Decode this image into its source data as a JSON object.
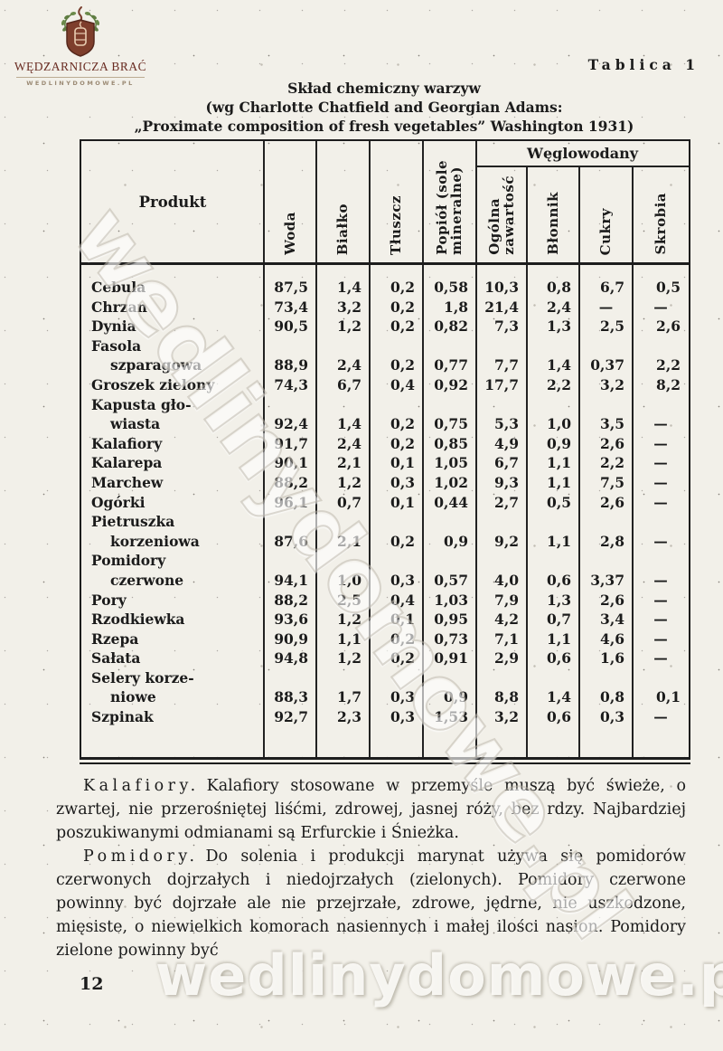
{
  "page": {
    "tablica_label": "Tablica 1",
    "page_number": "12"
  },
  "logo": {
    "title": "WĘDZARNICZA BRAĆ",
    "url": "WEDLINYDOMOWE.PL"
  },
  "title": {
    "line1": "Skład chemiczny warzyw",
    "line2": "(wg Charlotte Chatfield and Georgian Adams:",
    "line3": "„Proximate composition of fresh vegetables” Washington 1931)"
  },
  "table": {
    "product_header": "Produkt",
    "col_headers": [
      "Woda",
      "Białko",
      "Tłuszcz",
      "Popiół (sole\nmineralne)"
    ],
    "group_header": "Węglowodany",
    "group_cols": [
      "Ogólna\nzawartość",
      "Błonnik",
      "Cukry",
      "Skrobia"
    ],
    "rows": [
      {
        "name_lines": [
          "Cebula"
        ],
        "values": [
          "87,5",
          "1,4",
          "0,2",
          "0,58",
          "10,3",
          "0,8",
          "6,7",
          "0,5"
        ]
      },
      {
        "name_lines": [
          "Chrzan"
        ],
        "values": [
          "73,4",
          "3,2",
          "0,2",
          "1,8",
          "21,4",
          "2,4",
          "—",
          "—"
        ]
      },
      {
        "name_lines": [
          "Dynia"
        ],
        "values": [
          "90,5",
          "1,2",
          "0,2",
          "0,82",
          "7,3",
          "1,3",
          "2,5",
          "2,6"
        ]
      },
      {
        "name_lines": [
          "Fasola",
          "szparagowa"
        ],
        "values": [
          "88,9",
          "2,4",
          "0,2",
          "0,77",
          "7,7",
          "1,4",
          "0,37",
          "2,2"
        ]
      },
      {
        "name_lines": [
          "Groszek zielony"
        ],
        "values": [
          "74,3",
          "6,7",
          "0,4",
          "0,92",
          "17,7",
          "2,2",
          "3,2",
          "8,2"
        ]
      },
      {
        "name_lines": [
          "Kapusta gło-",
          "wiasta"
        ],
        "values": [
          "92,4",
          "1,4",
          "0,2",
          "0,75",
          "5,3",
          "1,0",
          "3,5",
          "—"
        ]
      },
      {
        "name_lines": [
          "Kalafiory"
        ],
        "values": [
          "91,7",
          "2,4",
          "0,2",
          "0,85",
          "4,9",
          "0,9",
          "2,6",
          "—"
        ]
      },
      {
        "name_lines": [
          "Kalarepa"
        ],
        "values": [
          "90,1",
          "2,1",
          "0,1",
          "1,05",
          "6,7",
          "1,1",
          "2,2",
          "—"
        ]
      },
      {
        "name_lines": [
          "Marchew"
        ],
        "values": [
          "88,2",
          "1,2",
          "0,3",
          "1,02",
          "9,3",
          "1,1",
          "7,5",
          "—"
        ]
      },
      {
        "name_lines": [
          "Ogórki"
        ],
        "values": [
          "96,1",
          "0,7",
          "0,1",
          "0,44",
          "2,7",
          "0,5",
          "2,6",
          "—"
        ]
      },
      {
        "name_lines": [
          "Pietruszka",
          "korzeniowa"
        ],
        "values": [
          "87,6",
          "2,1",
          "0,2",
          "0,9",
          "9,2",
          "1,1",
          "2,8",
          "—"
        ]
      },
      {
        "name_lines": [
          "Pomidory",
          "czerwone"
        ],
        "values": [
          "94,1",
          "1,0",
          "0,3",
          "0,57",
          "4,0",
          "0,6",
          "3,37",
          "—"
        ]
      },
      {
        "name_lines": [
          "Pory"
        ],
        "values": [
          "88,2",
          "2,5",
          "0,4",
          "1,03",
          "7,9",
          "1,3",
          "2,6",
          "—"
        ]
      },
      {
        "name_lines": [
          "Rzodkiewka"
        ],
        "values": [
          "93,6",
          "1,2",
          "0,1",
          "0,95",
          "4,2",
          "0,7",
          "3,4",
          "—"
        ]
      },
      {
        "name_lines": [
          "Rzepa"
        ],
        "values": [
          "90,9",
          "1,1",
          "0,2",
          "0,73",
          "7,1",
          "1,1",
          "4,6",
          "—"
        ]
      },
      {
        "name_lines": [
          "Sałata"
        ],
        "values": [
          "94,8",
          "1,2",
          "0,2",
          "0,91",
          "2,9",
          "0,6",
          "1,6",
          "—"
        ]
      },
      {
        "name_lines": [
          "Selery korze-",
          "niowe"
        ],
        "values": [
          "88,3",
          "1,7",
          "0,3",
          "0,9",
          "8,8",
          "1,4",
          "0,8",
          "0,1"
        ]
      },
      {
        "name_lines": [
          "Szpinak"
        ],
        "values": [
          "92,7",
          "2,3",
          "0,3",
          "1,53",
          "3,2",
          "0,6",
          "0,3",
          "—"
        ]
      }
    ]
  },
  "paragraphs": [
    {
      "headword": "Kalafiory.",
      "text": "Kalafiory stosowane w przemyśle muszą być świeże, o zwartej, nie przerośniętej liśćmi, zdrowej, jasnej róży, bez rdzy. Najbardziej poszukiwanymi odmianami są Erfurckie i Śnieżka."
    },
    {
      "headword": "Pomidory.",
      "text": "Do solenia i produkcji marynat używa się pomidorów czerwonych dojrzałych i niedojrzałych (zielonych). Pomidory czerwone powinny być dojrzałe ale nie przejrzałe, zdrowe, jędrne, nie uszkodzone, mięsiste, o niewielkich komorach nasiennych i małej ilości nasion. Pomidory zielone powinny być"
    }
  ],
  "watermarks": {
    "diagonal": "wedlinydomowe.pl",
    "bottom": "wedlinydomowe.pl"
  },
  "colors": {
    "paper": "#f2f0e9",
    "ink": "#1b1b1b",
    "logo_maroon": "#6a2c22",
    "logo_shield": "#7e3e2c",
    "logo_leaf": "#5f7d42"
  }
}
